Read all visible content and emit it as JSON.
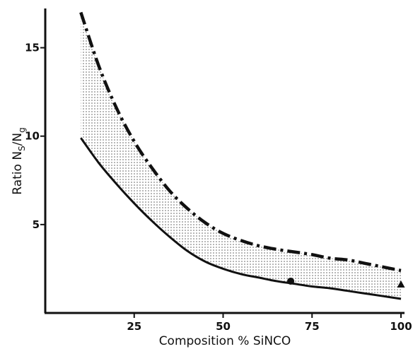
{
  "chart_data": {
    "type": "line",
    "title": "",
    "xlabel": "Composition % SiNCO",
    "ylabel": "Ratio Ns/Ng",
    "ylabel_parts": {
      "prefix": "Ratio N",
      "sub1": "S",
      "slash": "/N",
      "sub2": "g"
    },
    "xlim": [
      0,
      100
    ],
    "ylim": [
      0,
      17
    ],
    "x_ticks": [
      25,
      50,
      75,
      100
    ],
    "y_ticks": [
      5,
      10,
      15
    ],
    "grid": false,
    "series": [
      {
        "style": "dash-dot",
        "x": [
          10,
          15,
          20,
          25,
          30,
          35,
          40,
          45,
          50,
          55,
          60,
          65,
          70,
          75,
          80,
          85,
          90,
          95,
          100
        ],
        "y": [
          17.0,
          14.0,
          11.6,
          9.7,
          8.2,
          6.9,
          5.9,
          5.1,
          4.5,
          4.1,
          3.8,
          3.6,
          3.45,
          3.3,
          3.1,
          3.0,
          2.8,
          2.6,
          2.4
        ]
      },
      {
        "style": "solid",
        "x": [
          10,
          15,
          20,
          25,
          30,
          35,
          40,
          45,
          50,
          55,
          60,
          65,
          70,
          75,
          80,
          85,
          90,
          95,
          100
        ],
        "y": [
          9.9,
          8.5,
          7.3,
          6.2,
          5.2,
          4.3,
          3.5,
          2.9,
          2.5,
          2.2,
          2.0,
          1.8,
          1.65,
          1.5,
          1.4,
          1.25,
          1.1,
          0.95,
          0.8
        ]
      }
    ],
    "band": {
      "fill": "dotted",
      "between": "upper and lower curves"
    },
    "points": [
      {
        "marker": "circle",
        "x": 69,
        "y": 1.8
      },
      {
        "marker": "triangle",
        "x": 100,
        "y": 1.6
      }
    ]
  }
}
